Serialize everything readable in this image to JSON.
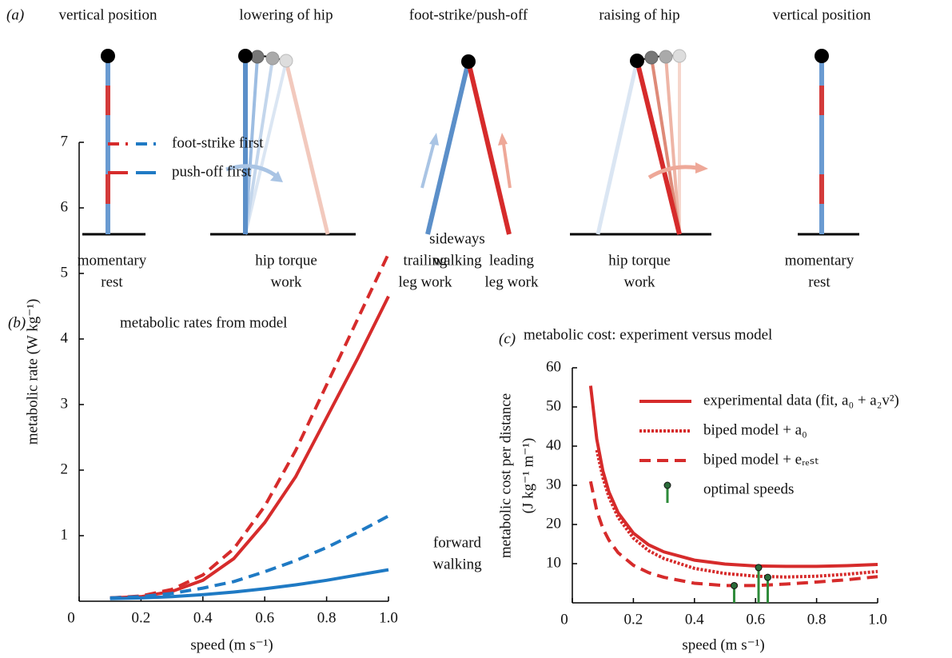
{
  "panel_a": {
    "label": "(a)",
    "columns": [
      {
        "title": "vertical position",
        "captions": [
          {
            "lines": [
              "momentary",
              "rest"
            ]
          }
        ]
      },
      {
        "title": "lowering of hip",
        "captions": [
          {
            "lines": [
              "hip torque",
              "work"
            ]
          }
        ]
      },
      {
        "title": "foot-strike/push-off",
        "captions": [
          {
            "lines": [
              "trailing",
              "leg work"
            ]
          },
          {
            "lines": [
              "leading",
              "leg work"
            ]
          }
        ]
      },
      {
        "title": "raising of hip",
        "captions": [
          {
            "lines": [
              "hip torque",
              "work"
            ]
          }
        ]
      },
      {
        "title": "vertical position",
        "captions": [
          {
            "lines": [
              "momentary",
              "rest"
            ]
          }
        ]
      }
    ]
  },
  "chart_data": [
    {
      "type": "line",
      "panel_label": "(b)",
      "title": "metabolic rates from model",
      "xlabel": "speed (m s⁻¹)",
      "ylabel": [
        "metabolic rate (W kg⁻¹)"
      ],
      "xlim": [
        0,
        1
      ],
      "ylim": [
        0,
        7
      ],
      "xticks": [
        0,
        0.2,
        0.4,
        0.6,
        0.8,
        {
          "value": 1,
          "label": "1.0"
        }
      ],
      "yticks": [
        1,
        2,
        3,
        4,
        5,
        6,
        7
      ],
      "legend": "upper left",
      "series": [
        {
          "name": "foot-strike first",
          "color": "#d62b2b",
          "style": "dashed",
          "x": [
            0.1,
            0.2,
            0.3,
            0.4,
            0.5,
            0.6,
            0.7,
            0.8,
            0.9,
            1.0
          ],
          "values": [
            0.05,
            0.08,
            0.18,
            0.4,
            0.8,
            1.45,
            2.3,
            3.3,
            4.3,
            5.3
          ]
        },
        {
          "name": "push-off first",
          "color": "#d62b2b",
          "style": "solid",
          "x": [
            0.1,
            0.2,
            0.3,
            0.4,
            0.5,
            0.6,
            0.7,
            0.8,
            0.9,
            1.0
          ],
          "values": [
            0.05,
            0.07,
            0.15,
            0.32,
            0.65,
            1.2,
            1.9,
            2.8,
            3.7,
            4.65
          ]
        },
        {
          "name": "foot-strike first",
          "color": "#1f7ac4",
          "style": "dashed",
          "x": [
            0.1,
            0.2,
            0.3,
            0.4,
            0.5,
            0.6,
            0.7,
            0.8,
            0.9,
            1.0
          ],
          "values": [
            0.05,
            0.07,
            0.12,
            0.2,
            0.3,
            0.45,
            0.62,
            0.82,
            1.05,
            1.3
          ]
        },
        {
          "name": "push-off first",
          "color": "#1f7ac4",
          "style": "solid",
          "x": [
            0.1,
            0.2,
            0.3,
            0.4,
            0.5,
            0.6,
            0.7,
            0.8,
            0.9,
            1.0
          ],
          "values": [
            0.04,
            0.05,
            0.07,
            0.1,
            0.14,
            0.19,
            0.25,
            0.32,
            0.4,
            0.48
          ]
        }
      ],
      "annotations": [
        {
          "lines": [
            "sideways",
            "walking"
          ]
        },
        {
          "lines": [
            "forward",
            "walking"
          ]
        }
      ]
    },
    {
      "type": "line",
      "panel_label": "(c)",
      "title": "metabolic cost: experiment versus model",
      "xlabel": "speed (m s⁻¹)",
      "ylabel": [
        "metabolic cost per distance",
        "(J kg⁻¹ m⁻¹)"
      ],
      "xlim": [
        0,
        1
      ],
      "ylim": [
        0,
        60
      ],
      "xticks": [
        0,
        0.2,
        0.4,
        0.6,
        0.8,
        {
          "value": 1,
          "label": "1.0"
        }
      ],
      "yticks": [
        10,
        20,
        30,
        40,
        50,
        60
      ],
      "legend": "upper right",
      "series": [
        {
          "name": "experimental data (fit, a₀ + a₂v²)",
          "color": "#d62b2b",
          "style": "solid",
          "x": [
            0.06,
            0.08,
            0.1,
            0.12,
            0.15,
            0.2,
            0.25,
            0.3,
            0.4,
            0.5,
            0.6,
            0.7,
            0.8,
            0.9,
            1.0
          ],
          "values": [
            55.4,
            41.8,
            33.7,
            28.3,
            23.0,
            17.8,
            14.8,
            13.0,
            10.9,
            9.9,
            9.4,
            9.3,
            9.3,
            9.5,
            9.8
          ]
        },
        {
          "name": "biped model + a₀",
          "color": "#d62b2b",
          "style": "dotted",
          "x": [
            0.08,
            0.1,
            0.12,
            0.15,
            0.2,
            0.25,
            0.3,
            0.4,
            0.5,
            0.6,
            0.7,
            0.8,
            0.9,
            1.0
          ],
          "values": [
            39,
            32,
            27,
            21.8,
            16.5,
            13.3,
            11.3,
            8.8,
            7.5,
            6.8,
            6.6,
            6.8,
            7.3,
            8.0
          ]
        },
        {
          "name": "biped model + eᵣₑₛₜ",
          "color": "#d62b2b",
          "style": "dashed",
          "x": [
            0.06,
            0.08,
            0.1,
            0.12,
            0.15,
            0.2,
            0.25,
            0.3,
            0.4,
            0.5,
            0.6,
            0.7,
            0.8,
            0.9,
            1.0
          ],
          "values": [
            31,
            23.5,
            19,
            16,
            12.8,
            9.6,
            7.7,
            6.5,
            5.0,
            4.4,
            4.4,
            4.8,
            5.3,
            5.9,
            6.7
          ]
        },
        {
          "name": "optimal speeds",
          "color": "#2e8b3a",
          "style": "stem",
          "x": [
            0.53,
            0.61,
            0.64
          ],
          "values": [
            4.4,
            9.0,
            6.5
          ]
        }
      ]
    }
  ]
}
